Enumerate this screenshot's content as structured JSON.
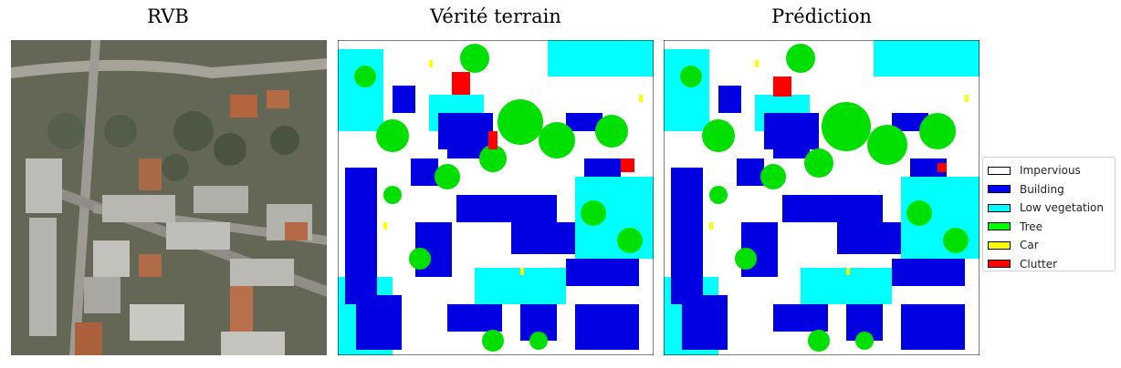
{
  "panels": [
    {
      "id": "rgb",
      "title": "RVB"
    },
    {
      "id": "ground_truth",
      "title": "Vérité terrain"
    },
    {
      "id": "prediction",
      "title": "Prédiction"
    }
  ],
  "legend": {
    "items": [
      {
        "label": "Impervious",
        "color": "#ffffff"
      },
      {
        "label": "Building",
        "color": "#0000ff"
      },
      {
        "label": "Low vegetation",
        "color": "#00ffff"
      },
      {
        "label": "Tree",
        "color": "#00ff00"
      },
      {
        "label": "Car",
        "color": "#ffff00"
      },
      {
        "label": "Clutter",
        "color": "#ff0000"
      }
    ]
  }
}
